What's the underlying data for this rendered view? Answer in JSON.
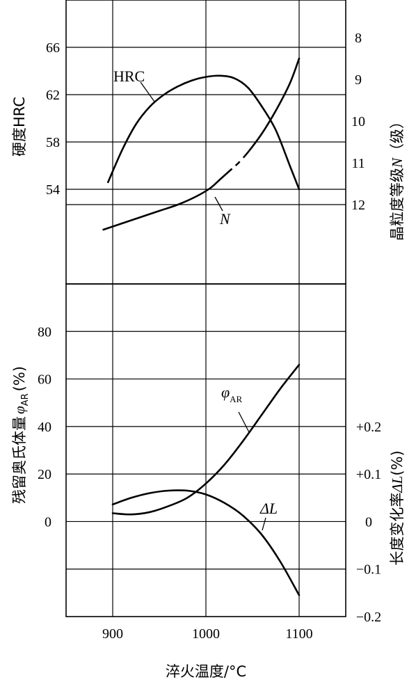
{
  "chart_data": [
    {
      "type": "line",
      "panel": "top",
      "x_label": "淬火温度/°C",
      "xlim": [
        850,
        1150
      ],
      "x_ticks": [
        900,
        1000,
        1100
      ],
      "x_tick_labels": [
        "900",
        "1000",
        "1100"
      ],
      "left_axis": {
        "label": "硬度HRC",
        "ylim": [
          46,
          70
        ],
        "ticks": [
          66,
          62,
          58,
          54
        ],
        "tick_labels": [
          "66",
          "62",
          "58",
          "54"
        ]
      },
      "right_axis": {
        "label_parts": [
          "晶粒度等级",
          "N",
          "（级）"
        ],
        "reversed": true,
        "ylim": [
          7.1,
          13.9
        ],
        "ticks": [
          8,
          9,
          10,
          11,
          12
        ],
        "tick_labels": [
          "8",
          "9",
          "10",
          "11",
          "12"
        ]
      },
      "series": [
        {
          "name": "HRC",
          "axis": "left",
          "x": [
            895,
            910,
            925,
            940,
            955,
            970,
            985,
            1000,
            1015,
            1030,
            1045,
            1060,
            1075,
            1090,
            1100
          ],
          "y": [
            54.6,
            57.3,
            59.5,
            61.0,
            62.0,
            62.7,
            63.2,
            63.5,
            63.6,
            63.4,
            62.6,
            61.0,
            59.0,
            56.0,
            54.0
          ]
        },
        {
          "name": "N",
          "label_style": "italic",
          "axis": "right",
          "x": [
            890,
            910,
            930,
            950,
            970,
            990,
            1005,
            1015,
            1025,
            1035,
            1045,
            1060,
            1075,
            1090,
            1100
          ],
          "y": [
            12.6,
            12.45,
            12.3,
            12.15,
            12.0,
            11.8,
            11.6,
            11.4,
            11.2,
            11.0,
            10.75,
            10.3,
            9.75,
            9.1,
            8.5
          ],
          "dash_gap_x": [
            1028,
            1040
          ]
        }
      ]
    },
    {
      "type": "line",
      "panel": "bottom",
      "x_label": "淬火温度/°C",
      "xlim": [
        850,
        1150
      ],
      "x_ticks": [
        900,
        1000,
        1100
      ],
      "x_tick_labels": [
        "900",
        "1000",
        "1100"
      ],
      "left_axis": {
        "label_text": "残留奥氏体量",
        "label_symbol": "φ",
        "label_subscript": "AR",
        "label_unit": "(%)",
        "ylim": [
          -40,
          100
        ],
        "ticks": [
          80,
          60,
          40,
          20,
          0
        ],
        "tick_labels": [
          "80",
          "60",
          "40",
          "20",
          "0"
        ]
      },
      "right_axis": {
        "label_text": "长度变化率",
        "label_symbol": "ΔL",
        "label_unit": "(%)",
        "ylim": [
          -0.2,
          0.2
        ],
        "ticks": [
          0.2,
          0.1,
          0,
          -0.1,
          -0.2
        ],
        "tick_labels": [
          "+0.2",
          "+0.1",
          "0",
          "−0.1",
          "−0.2"
        ]
      },
      "series": [
        {
          "name": "φAR",
          "label_symbol": "φ",
          "label_subscript": "AR",
          "axis": "left",
          "x": [
            900,
            920,
            940,
            960,
            980,
            1000,
            1020,
            1040,
            1060,
            1080,
            1100
          ],
          "y": [
            3.5,
            3.0,
            4.0,
            6.5,
            10.0,
            16.0,
            24.0,
            34.0,
            45.0,
            56.0,
            66.0
          ]
        },
        {
          "name": "ΔL",
          "label_symbol": "ΔL",
          "axis": "right",
          "x": [
            900,
            920,
            940,
            960,
            980,
            1000,
            1020,
            1040,
            1060,
            1080,
            1100
          ],
          "y": [
            0.036,
            0.05,
            0.06,
            0.065,
            0.065,
            0.057,
            0.039,
            0.012,
            -0.028,
            -0.085,
            -0.155
          ]
        }
      ]
    }
  ]
}
